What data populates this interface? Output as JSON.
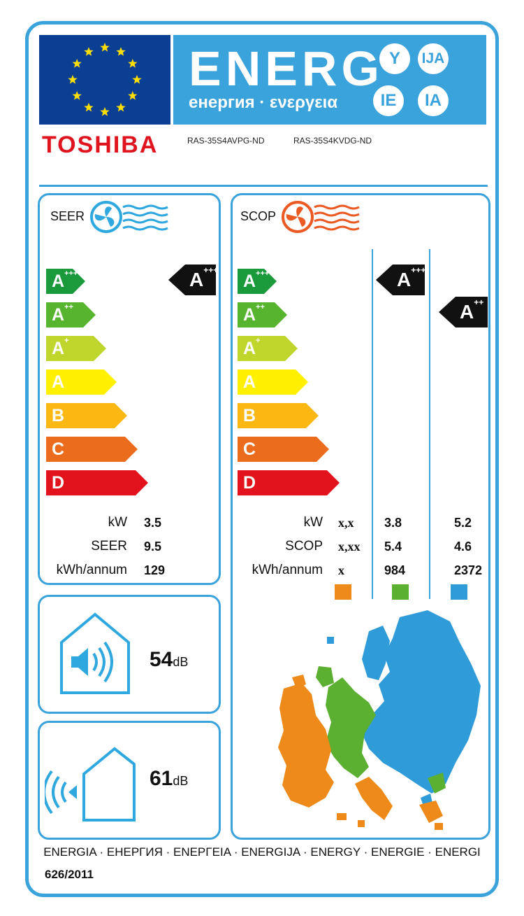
{
  "header": {
    "energ": "ENERG",
    "subtitle": "енергия · ενεργεια",
    "lang_suffixes": [
      "Y",
      "IJA",
      "IE",
      "IA"
    ],
    "brand": "TOSHIBA",
    "model_indoor": "RAS-35S4AVPG-ND",
    "model_outdoor": "RAS-35S4KVDG-ND"
  },
  "classes": [
    {
      "label": "A",
      "plus": "+++",
      "color": "#1a9a3a"
    },
    {
      "label": "A",
      "plus": "++",
      "color": "#56b42e"
    },
    {
      "label": "A",
      "plus": "+",
      "color": "#bfd62d"
    },
    {
      "label": "A",
      "plus": "",
      "color": "#fff000"
    },
    {
      "label": "B",
      "plus": "",
      "color": "#fbb813"
    },
    {
      "label": "C",
      "plus": "",
      "color": "#ec6c1e"
    },
    {
      "label": "D",
      "plus": "",
      "color": "#e2131d"
    }
  ],
  "seer": {
    "title": "SEER",
    "rating": {
      "label": "A",
      "plus": "+++"
    },
    "rows": [
      {
        "label": "kW",
        "value": "3.5"
      },
      {
        "label": "SEER",
        "value": "9.5"
      },
      {
        "label": "kWh/annum",
        "value": "129"
      }
    ]
  },
  "scop": {
    "title": "SCOP",
    "rating_average": {
      "label": "A",
      "plus": "+++"
    },
    "rating_warmer": {
      "label": "A",
      "plus": "++"
    },
    "rows": [
      {
        "label": "kW",
        "colder": "x,x",
        "average": "3.8",
        "warmer": "5.2"
      },
      {
        "label": "SCOP",
        "colder": "x,xx",
        "average": "5.4",
        "warmer": "4.6"
      },
      {
        "label": "kWh/annum",
        "colder": "x",
        "average": "984",
        "warmer": "2372"
      }
    ],
    "zone_colors": {
      "colder": "#ee8a1a",
      "average": "#5cb031",
      "warmer": "#2f9bd8"
    }
  },
  "noise": {
    "indoor_value": "54",
    "outdoor_value": "61",
    "unit": "dB"
  },
  "footer": {
    "languages": "ENERGIA · ЕНЕРГИЯ · ΕΝΕΡΓΕΙΑ · ENERGIJA · ENERGY · ENERGIE · ENERGI",
    "regulation": "626/2011"
  },
  "colors": {
    "frame": "#3ba3dc",
    "brand": "#e0141e",
    "eu_blue": "#0a3f94",
    "eu_star": "#ffde00"
  }
}
